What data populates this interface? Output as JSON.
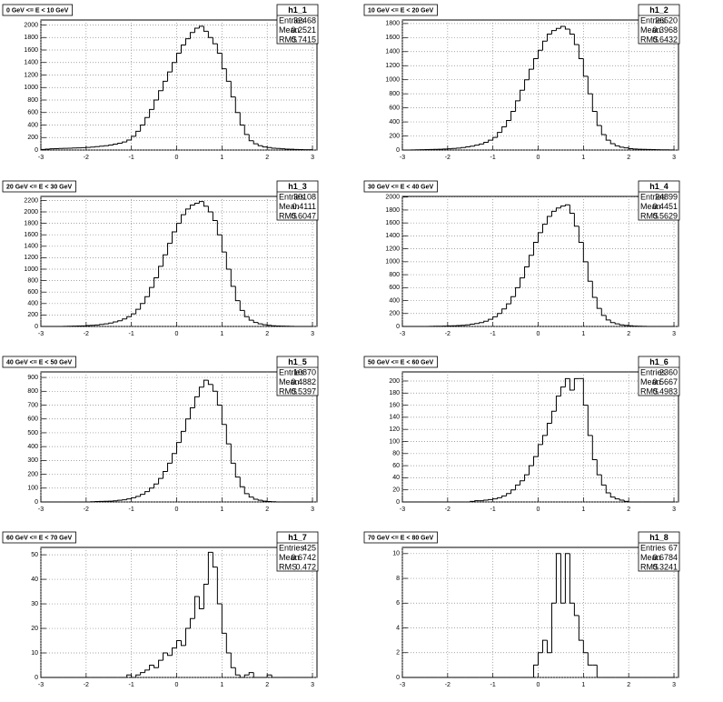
{
  "chart_data": [
    {
      "type": "histogram",
      "title": "0 GeV <= E < 10 GeV",
      "name": "h1_1",
      "color": "#000000",
      "grid": true,
      "stats": [
        {
          "label": "Entries",
          "value": 32468
        },
        {
          "label": "Mean",
          "value": 0.2521
        },
        {
          "label": "RMS",
          "value": 0.7415
        }
      ],
      "bins": [
        -3,
        -2.9,
        -2.8,
        -2.7,
        -2.6,
        -2.5,
        -2.4,
        -2.3,
        -2.2,
        -2.1,
        -2,
        -1.9,
        -1.8,
        -1.7,
        -1.6,
        -1.5,
        -1.4,
        -1.3,
        -1.2,
        -1.1,
        -1,
        -0.9,
        -0.8,
        -0.7,
        -0.6,
        -0.5,
        -0.4,
        -0.3,
        -0.2,
        -0.1,
        0,
        0.1,
        0.2,
        0.3,
        0.4,
        0.5,
        0.6,
        0.7,
        0.8,
        0.9,
        1,
        1.1,
        1.2,
        1.3,
        1.4,
        1.5,
        1.6,
        1.7,
        1.8,
        1.9,
        2,
        2.1,
        2.2,
        2.3,
        2.4,
        2.5,
        2.6,
        2.7,
        2.8,
        2.9,
        3
      ],
      "values": [
        10,
        15,
        20,
        22,
        25,
        28,
        30,
        32,
        35,
        38,
        42,
        48,
        55,
        62,
        70,
        80,
        95,
        110,
        130,
        160,
        220,
        300,
        400,
        520,
        650,
        800,
        950,
        1100,
        1250,
        1400,
        1550,
        1680,
        1780,
        1880,
        1950,
        1980,
        1900,
        1800,
        1700,
        1550,
        1300,
        1100,
        850,
        600,
        400,
        250,
        150,
        100,
        70,
        50,
        40,
        30,
        25,
        20,
        15,
        12,
        10,
        8,
        6,
        5
      ],
      "xlim": [
        -3,
        3.1
      ],
      "xticks": [
        -3,
        -2,
        -1,
        0,
        1,
        2,
        3
      ],
      "ylim": [
        0,
        2080
      ],
      "yticks": [
        0,
        200,
        400,
        600,
        800,
        1000,
        1200,
        1400,
        1600,
        1800,
        2000
      ]
    },
    {
      "type": "histogram",
      "title": "10 GeV <= E < 20 GeV",
      "name": "h1_2",
      "color": "#000000",
      "grid": true,
      "stats": [
        {
          "label": "Entries",
          "value": 26520
        },
        {
          "label": "Mean",
          "value": 0.3968
        },
        {
          "label": "RMS",
          "value": 0.6432
        }
      ],
      "bins": [
        -3,
        -2.9,
        -2.8,
        -2.7,
        -2.6,
        -2.5,
        -2.4,
        -2.3,
        -2.2,
        -2.1,
        -2,
        -1.9,
        -1.8,
        -1.7,
        -1.6,
        -1.5,
        -1.4,
        -1.3,
        -1.2,
        -1.1,
        -1,
        -0.9,
        -0.8,
        -0.7,
        -0.6,
        -0.5,
        -0.4,
        -0.3,
        -0.2,
        -0.1,
        0,
        0.1,
        0.2,
        0.3,
        0.4,
        0.5,
        0.6,
        0.7,
        0.8,
        0.9,
        1,
        1.1,
        1.2,
        1.3,
        1.4,
        1.5,
        1.6,
        1.7,
        1.8,
        1.9,
        2,
        2.1,
        2.2,
        2.3,
        2.4,
        2.5,
        2.6,
        2.7,
        2.8,
        2.9,
        3
      ],
      "values": [
        0,
        0,
        2,
        3,
        5,
        6,
        8,
        10,
        12,
        15,
        18,
        22,
        28,
        35,
        45,
        55,
        70,
        85,
        110,
        140,
        180,
        250,
        330,
        420,
        550,
        700,
        850,
        1000,
        1150,
        1300,
        1420,
        1550,
        1650,
        1700,
        1730,
        1760,
        1720,
        1650,
        1500,
        1300,
        1050,
        800,
        550,
        350,
        220,
        140,
        90,
        60,
        40,
        30,
        20,
        15,
        12,
        10,
        8,
        6,
        5,
        4,
        3,
        2
      ],
      "xlim": [
        -3,
        3.1
      ],
      "xticks": [
        -3,
        -2,
        -1,
        0,
        1,
        2,
        3
      ],
      "ylim": [
        0,
        1850
      ],
      "yticks": [
        0,
        200,
        400,
        600,
        800,
        1000,
        1200,
        1400,
        1600,
        1800
      ]
    },
    {
      "type": "histogram",
      "title": "20 GeV <= E < 30 GeV",
      "name": "h1_3",
      "color": "#000000",
      "grid": true,
      "stats": [
        {
          "label": "Entries",
          "value": 30108
        },
        {
          "label": "Mean",
          "value": 0.4111
        },
        {
          "label": "RMS",
          "value": 0.6047
        }
      ],
      "bins": [
        -3,
        -2.9,
        -2.8,
        -2.7,
        -2.6,
        -2.5,
        -2.4,
        -2.3,
        -2.2,
        -2.1,
        -2,
        -1.9,
        -1.8,
        -1.7,
        -1.6,
        -1.5,
        -1.4,
        -1.3,
        -1.2,
        -1.1,
        -1,
        -0.9,
        -0.8,
        -0.7,
        -0.6,
        -0.5,
        -0.4,
        -0.3,
        -0.2,
        -0.1,
        0,
        0.1,
        0.2,
        0.3,
        0.4,
        0.5,
        0.6,
        0.7,
        0.8,
        0.9,
        1,
        1.1,
        1.2,
        1.3,
        1.4,
        1.5,
        1.6,
        1.7,
        1.8,
        1.9,
        2,
        2.1,
        2.2,
        2.3,
        2.4,
        2.5,
        2.6,
        2.7,
        2.8,
        2.9,
        3
      ],
      "values": [
        0,
        0,
        0,
        0,
        0,
        2,
        3,
        5,
        8,
        10,
        15,
        20,
        25,
        35,
        45,
        60,
        80,
        100,
        130,
        170,
        220,
        300,
        400,
        520,
        680,
        850,
        1050,
        1250,
        1450,
        1650,
        1800,
        1950,
        2050,
        2120,
        2150,
        2180,
        2100,
        2000,
        1850,
        1600,
        1300,
        1000,
        700,
        450,
        280,
        170,
        110,
        70,
        45,
        30,
        20,
        12,
        8,
        5,
        3,
        2,
        0,
        0,
        0,
        0
      ],
      "xlim": [
        -3,
        3.1
      ],
      "xticks": [
        -3,
        -2,
        -1,
        0,
        1,
        2,
        3
      ],
      "ylim": [
        0,
        2270
      ],
      "yticks": [
        0,
        200,
        400,
        600,
        800,
        1000,
        1200,
        1400,
        1600,
        1800,
        2000,
        2200
      ]
    },
    {
      "type": "histogram",
      "title": "30 GeV <= E < 40 GeV",
      "name": "h1_4",
      "color": "#000000",
      "grid": true,
      "stats": [
        {
          "label": "Entries",
          "value": 24899
        },
        {
          "label": "Mean",
          "value": 0.4451
        },
        {
          "label": "RMS",
          "value": 0.5629
        }
      ],
      "bins": [
        -3,
        -2.9,
        -2.8,
        -2.7,
        -2.6,
        -2.5,
        -2.4,
        -2.3,
        -2.2,
        -2.1,
        -2,
        -1.9,
        -1.8,
        -1.7,
        -1.6,
        -1.5,
        -1.4,
        -1.3,
        -1.2,
        -1.1,
        -1,
        -0.9,
        -0.8,
        -0.7,
        -0.6,
        -0.5,
        -0.4,
        -0.3,
        -0.2,
        -0.1,
        0,
        0.1,
        0.2,
        0.3,
        0.4,
        0.5,
        0.6,
        0.7,
        0.8,
        0.9,
        1,
        1.1,
        1.2,
        1.3,
        1.4,
        1.5,
        1.6,
        1.7,
        1.8,
        1.9,
        2,
        2.1,
        2.2,
        2.3,
        2.4,
        2.5,
        2.6,
        2.7,
        2.8,
        2.9,
        3
      ],
      "values": [
        0,
        0,
        0,
        0,
        0,
        0,
        2,
        3,
        4,
        5,
        8,
        10,
        14,
        18,
        25,
        35,
        45,
        60,
        80,
        110,
        150,
        200,
        270,
        350,
        460,
        600,
        750,
        920,
        1100,
        1300,
        1450,
        1580,
        1700,
        1780,
        1830,
        1860,
        1880,
        1750,
        1550,
        1300,
        1000,
        700,
        450,
        280,
        170,
        100,
        60,
        40,
        25,
        15,
        10,
        6,
        4,
        2,
        0,
        0,
        0,
        0,
        0,
        0
      ],
      "xlim": [
        -3,
        3.1
      ],
      "xticks": [
        -3,
        -2,
        -1,
        0,
        1,
        2,
        3
      ],
      "ylim": [
        0,
        2010
      ],
      "yticks": [
        0,
        200,
        400,
        600,
        800,
        1000,
        1200,
        1400,
        1600,
        1800,
        2000
      ]
    },
    {
      "type": "histogram",
      "title": "40 GeV <= E < 50 GeV",
      "name": "h1_5",
      "color": "#000000",
      "grid": true,
      "stats": [
        {
          "label": "Entries",
          "value": 10870
        },
        {
          "label": "Mean",
          "value": 0.4882
        },
        {
          "label": "RMS",
          "value": 0.5397
        }
      ],
      "bins": [
        -3,
        -2.9,
        -2.8,
        -2.7,
        -2.6,
        -2.5,
        -2.4,
        -2.3,
        -2.2,
        -2.1,
        -2,
        -1.9,
        -1.8,
        -1.7,
        -1.6,
        -1.5,
        -1.4,
        -1.3,
        -1.2,
        -1.1,
        -1,
        -0.9,
        -0.8,
        -0.7,
        -0.6,
        -0.5,
        -0.4,
        -0.3,
        -0.2,
        -0.1,
        0,
        0.1,
        0.2,
        0.3,
        0.4,
        0.5,
        0.6,
        0.7,
        0.8,
        0.9,
        1,
        1.1,
        1.2,
        1.3,
        1.4,
        1.5,
        1.6,
        1.7,
        1.8,
        1.9,
        2,
        2.1,
        2.2,
        2.3,
        2.4,
        2.5,
        2.6,
        2.7,
        2.8,
        2.9,
        3
      ],
      "values": [
        0,
        0,
        0,
        0,
        0,
        0,
        0,
        0,
        0,
        0,
        0,
        2,
        3,
        4,
        5,
        6,
        8,
        12,
        16,
        22,
        30,
        40,
        55,
        75,
        100,
        130,
        170,
        220,
        280,
        350,
        430,
        510,
        600,
        680,
        760,
        830,
        880,
        850,
        800,
        700,
        560,
        420,
        280,
        180,
        110,
        60,
        35,
        20,
        12,
        6,
        3,
        2,
        0,
        0,
        0,
        0,
        0,
        0,
        0,
        0
      ],
      "xlim": [
        -3,
        3.1
      ],
      "xticks": [
        -3,
        -2,
        -1,
        0,
        1,
        2,
        3
      ],
      "ylim": [
        0,
        940
      ],
      "yticks": [
        0,
        100,
        200,
        300,
        400,
        500,
        600,
        700,
        800,
        900
      ]
    },
    {
      "type": "histogram",
      "title": "50 GeV <= E < 60 GeV",
      "name": "h1_6",
      "color": "#000000",
      "grid": true,
      "stats": [
        {
          "label": "Entries",
          "value": 2360
        },
        {
          "label": "Mean",
          "value": 0.5667
        },
        {
          "label": "RMS",
          "value": 0.4983
        }
      ],
      "bins": [
        -3,
        -2.9,
        -2.8,
        -2.7,
        -2.6,
        -2.5,
        -2.4,
        -2.3,
        -2.2,
        -2.1,
        -2,
        -1.9,
        -1.8,
        -1.7,
        -1.6,
        -1.5,
        -1.4,
        -1.3,
        -1.2,
        -1.1,
        -1,
        -0.9,
        -0.8,
        -0.7,
        -0.6,
        -0.5,
        -0.4,
        -0.3,
        -0.2,
        -0.1,
        0,
        0.1,
        0.2,
        0.3,
        0.4,
        0.5,
        0.6,
        0.7,
        0.8,
        0.9,
        1,
        1.1,
        1.2,
        1.3,
        1.4,
        1.5,
        1.6,
        1.7,
        1.8,
        1.9,
        2,
        2.1,
        2.2,
        2.3,
        2.4,
        2.5,
        2.6,
        2.7,
        2.8,
        2.9,
        3
      ],
      "values": [
        0,
        0,
        0,
        0,
        0,
        0,
        0,
        0,
        0,
        0,
        0,
        0,
        0,
        0,
        0,
        1,
        2,
        2,
        3,
        4,
        5,
        7,
        10,
        14,
        20,
        28,
        35,
        45,
        60,
        75,
        95,
        110,
        130,
        150,
        175,
        190,
        204,
        185,
        204,
        204,
        160,
        110,
        70,
        45,
        28,
        15,
        8,
        5,
        3,
        1,
        0,
        0,
        0,
        0,
        0,
        0,
        0,
        0,
        0,
        0
      ],
      "xlim": [
        -3,
        3.1
      ],
      "xticks": [
        -3,
        -2,
        -1,
        0,
        1,
        2,
        3
      ],
      "ylim": [
        0,
        215
      ],
      "yticks": [
        0,
        20,
        40,
        60,
        80,
        100,
        120,
        140,
        160,
        180,
        200
      ]
    },
    {
      "type": "histogram",
      "title": "60 GeV <= E < 70 GeV",
      "name": "h1_7",
      "color": "#000000",
      "grid": true,
      "stats": [
        {
          "label": "Entries",
          "value": 425
        },
        {
          "label": "Mean",
          "value": 0.6742
        },
        {
          "label": "RMS",
          "value": 0.472
        }
      ],
      "bins": [
        -3,
        -2.9,
        -2.8,
        -2.7,
        -2.6,
        -2.5,
        -2.4,
        -2.3,
        -2.2,
        -2.1,
        -2,
        -1.9,
        -1.8,
        -1.7,
        -1.6,
        -1.5,
        -1.4,
        -1.3,
        -1.2,
        -1.1,
        -1,
        -0.9,
        -0.8,
        -0.7,
        -0.6,
        -0.5,
        -0.4,
        -0.3,
        -0.2,
        -0.1,
        0,
        0.1,
        0.2,
        0.3,
        0.4,
        0.5,
        0.6,
        0.7,
        0.8,
        0.9,
        1,
        1.1,
        1.2,
        1.3,
        1.4,
        1.5,
        1.6,
        1.7,
        1.8,
        1.9,
        2,
        2.1,
        2.2,
        2.3,
        2.4,
        2.5,
        2.6,
        2.7,
        2.8,
        2.9,
        3
      ],
      "values": [
        0,
        0,
        0,
        0,
        0,
        0,
        0,
        0,
        0,
        0,
        0,
        0,
        0,
        0,
        0,
        0,
        0,
        0,
        0,
        1,
        0,
        1,
        2,
        3,
        5,
        4,
        7,
        10,
        9,
        12,
        15,
        13,
        20,
        24,
        33,
        28,
        38,
        51,
        45,
        30,
        18,
        10,
        4,
        1,
        0,
        1,
        2,
        0,
        0,
        0,
        1,
        0,
        0,
        0,
        0,
        0,
        0,
        0,
        0,
        0
      ],
      "xlim": [
        -3,
        3.1
      ],
      "xticks": [
        -3,
        -2,
        -1,
        0,
        1,
        2,
        3
      ],
      "ylim": [
        0,
        53
      ],
      "yticks": [
        0,
        10,
        20,
        30,
        40,
        50
      ]
    },
    {
      "type": "histogram",
      "title": "70 GeV <= E < 80 GeV",
      "name": "h1_8",
      "color": "#000000",
      "grid": true,
      "stats": [
        {
          "label": "Entries",
          "value": 67
        },
        {
          "label": "Mean",
          "value": 0.6784
        },
        {
          "label": "RMS",
          "value": 0.3241
        }
      ],
      "bins": [
        -3,
        -2.9,
        -2.8,
        -2.7,
        -2.6,
        -2.5,
        -2.4,
        -2.3,
        -2.2,
        -2.1,
        -2,
        -1.9,
        -1.8,
        -1.7,
        -1.6,
        -1.5,
        -1.4,
        -1.3,
        -1.2,
        -1.1,
        -1,
        -0.9,
        -0.8,
        -0.7,
        -0.6,
        -0.5,
        -0.4,
        -0.3,
        -0.2,
        -0.1,
        0,
        0.1,
        0.2,
        0.3,
        0.4,
        0.5,
        0.6,
        0.7,
        0.8,
        0.9,
        1,
        1.1,
        1.2,
        1.3,
        1.4,
        1.5,
        1.6,
        1.7,
        1.8,
        1.9,
        2,
        2.1,
        2.2,
        2.3,
        2.4,
        2.5,
        2.6,
        2.7,
        2.8,
        2.9,
        3
      ],
      "values": [
        0,
        0,
        0,
        0,
        0,
        0,
        0,
        0,
        0,
        0,
        0,
        0,
        0,
        0,
        0,
        0,
        0,
        0,
        0,
        0,
        0,
        0,
        0,
        0,
        0,
        0,
        0,
        0,
        0,
        1,
        2,
        3,
        2,
        6,
        10,
        6,
        10,
        6,
        5,
        3,
        2,
        1,
        1,
        0,
        0,
        0,
        0,
        0,
        0,
        0,
        0,
        0,
        0,
        0,
        0,
        0,
        0,
        0,
        0,
        0
      ],
      "xlim": [
        -3,
        3.1
      ],
      "xticks": [
        -3,
        -2,
        -1,
        0,
        1,
        2,
        3
      ],
      "ylim": [
        0,
        10.5
      ],
      "yticks": [
        0,
        2,
        4,
        6,
        8,
        10
      ]
    }
  ]
}
